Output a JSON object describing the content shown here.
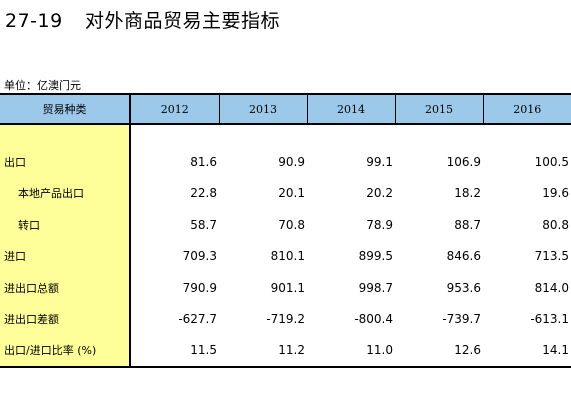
{
  "title": {
    "code": "27-19",
    "text": "对外商品贸易主要指标"
  },
  "unit_label": "单位：亿澳门元",
  "table": {
    "header_label": "贸易种类",
    "years": [
      "2012",
      "2013",
      "2014",
      "2015",
      "2016"
    ],
    "rows": [
      {
        "label": "出口",
        "values": [
          "81.6",
          "90.9",
          "99.1",
          "106.9",
          "100.5"
        ]
      },
      {
        "label": "本地产品出口",
        "values": [
          "22.8",
          "20.1",
          "20.2",
          "18.2",
          "19.6"
        ]
      },
      {
        "label": "转口",
        "values": [
          "58.7",
          "70.8",
          "78.9",
          "88.7",
          "80.8"
        ]
      },
      {
        "label": "进口",
        "values": [
          "709.3",
          "810.1",
          "899.5",
          "846.6",
          "713.5"
        ]
      },
      {
        "label": "进出口总额",
        "values": [
          "790.9",
          "901.1",
          "998.7",
          "953.6",
          "814.0"
        ]
      },
      {
        "label": "进出口差额",
        "values": [
          "-627.7",
          "-719.2",
          "-800.4",
          "-739.7",
          "-613.1"
        ]
      },
      {
        "label": "出口/进口比率 (%)",
        "values": [
          "11.5",
          "11.2",
          "11.0",
          "12.6",
          "14.1"
        ]
      }
    ]
  },
  "colors": {
    "header_fill": "#9cc9e9",
    "label_column_fill": "#ffff99",
    "rule": "#000000"
  }
}
